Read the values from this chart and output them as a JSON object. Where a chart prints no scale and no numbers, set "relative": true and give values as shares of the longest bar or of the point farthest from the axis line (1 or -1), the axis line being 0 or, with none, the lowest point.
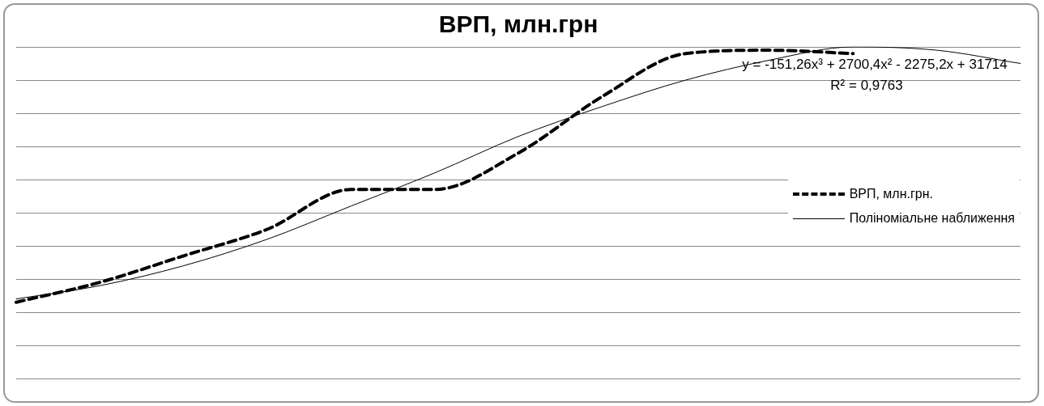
{
  "chart_data": {
    "type": "line",
    "title": "ВРП, млн.грн",
    "relative": true,
    "grid": "y",
    "legend": "right",
    "marker": "none",
    "categories": [
      null,
      null,
      null,
      null,
      null,
      null,
      null,
      null,
      null,
      null,
      null,
      null,
      null
    ],
    "series": [
      {
        "name": "ВРП, млн.грн.",
        "color": "#000000",
        "line_style": "dashed",
        "values": [
          0.23,
          0.29,
          0.37,
          0.45,
          0.57,
          0.57,
          0.68,
          0.85,
          0.98,
          0.99,
          0.98,
          null,
          null
        ]
      },
      {
        "name": "Поліноміальне наближення",
        "color": "#000000",
        "line_style": "solid",
        "type": "line",
        "values": [
          0.24,
          0.28,
          0.34,
          0.42,
          0.52,
          0.62,
          0.73,
          0.82,
          0.9,
          0.96,
          1.0,
          0.99,
          0.95
        ]
      }
    ],
    "annotations": [
      "y = -151,26x³ + 2700,4x² - 2275,2x + 31714",
      "R² = 0,9763"
    ]
  }
}
